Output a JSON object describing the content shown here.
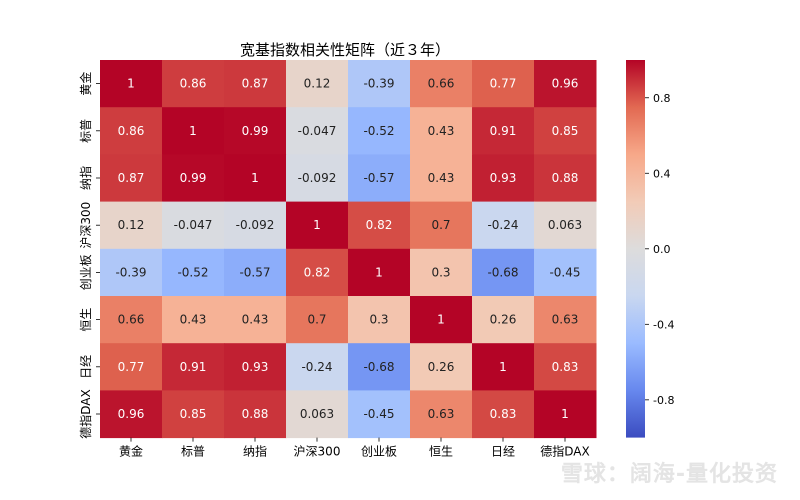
{
  "chart_data": {
    "type": "heatmap",
    "title": "宽基指数相关性矩阵（近３年）",
    "rows": [
      "黄金",
      "标普",
      "纳指",
      "沪深300",
      "创业板",
      "恒生",
      "日经",
      "德指DAX"
    ],
    "cols": [
      "黄金",
      "标普",
      "纳指",
      "沪深300",
      "创业板",
      "恒生",
      "日经",
      "德指DAX"
    ],
    "values": [
      [
        1,
        0.86,
        0.87,
        0.12,
        -0.39,
        0.66,
        0.77,
        0.96
      ],
      [
        0.86,
        1,
        0.99,
        -0.047,
        -0.52,
        0.43,
        0.91,
        0.85
      ],
      [
        0.87,
        0.99,
        1,
        -0.092,
        -0.57,
        0.43,
        0.93,
        0.88
      ],
      [
        0.12,
        -0.047,
        -0.092,
        1,
        0.82,
        0.7,
        -0.24,
        0.063
      ],
      [
        -0.39,
        -0.52,
        -0.57,
        0.82,
        1,
        0.3,
        -0.68,
        -0.45
      ],
      [
        0.66,
        0.43,
        0.43,
        0.7,
        0.3,
        1,
        0.26,
        0.63
      ],
      [
        0.77,
        0.91,
        0.93,
        -0.24,
        -0.68,
        0.26,
        1,
        0.83
      ],
      [
        0.96,
        0.85,
        0.88,
        0.063,
        -0.45,
        0.63,
        0.83,
        1
      ]
    ],
    "colorbar": {
      "ticks": [
        "0.8",
        "0.4",
        "0.0",
        "-0.4",
        "-0.8"
      ],
      "tick_values": [
        0.8,
        0.4,
        0.0,
        -0.4,
        -0.8
      ],
      "vmin": -1,
      "vmax": 1
    },
    "colormap": "coolwarm",
    "colormap_stops": [
      "#3b4cc0",
      "#6788ee",
      "#9abbff",
      "#c9d7f0",
      "#dddcdc",
      "#f2cbb7",
      "#f7a889",
      "#e26952",
      "#b40426"
    ]
  },
  "watermark": "雪球：阔海-量化投资"
}
